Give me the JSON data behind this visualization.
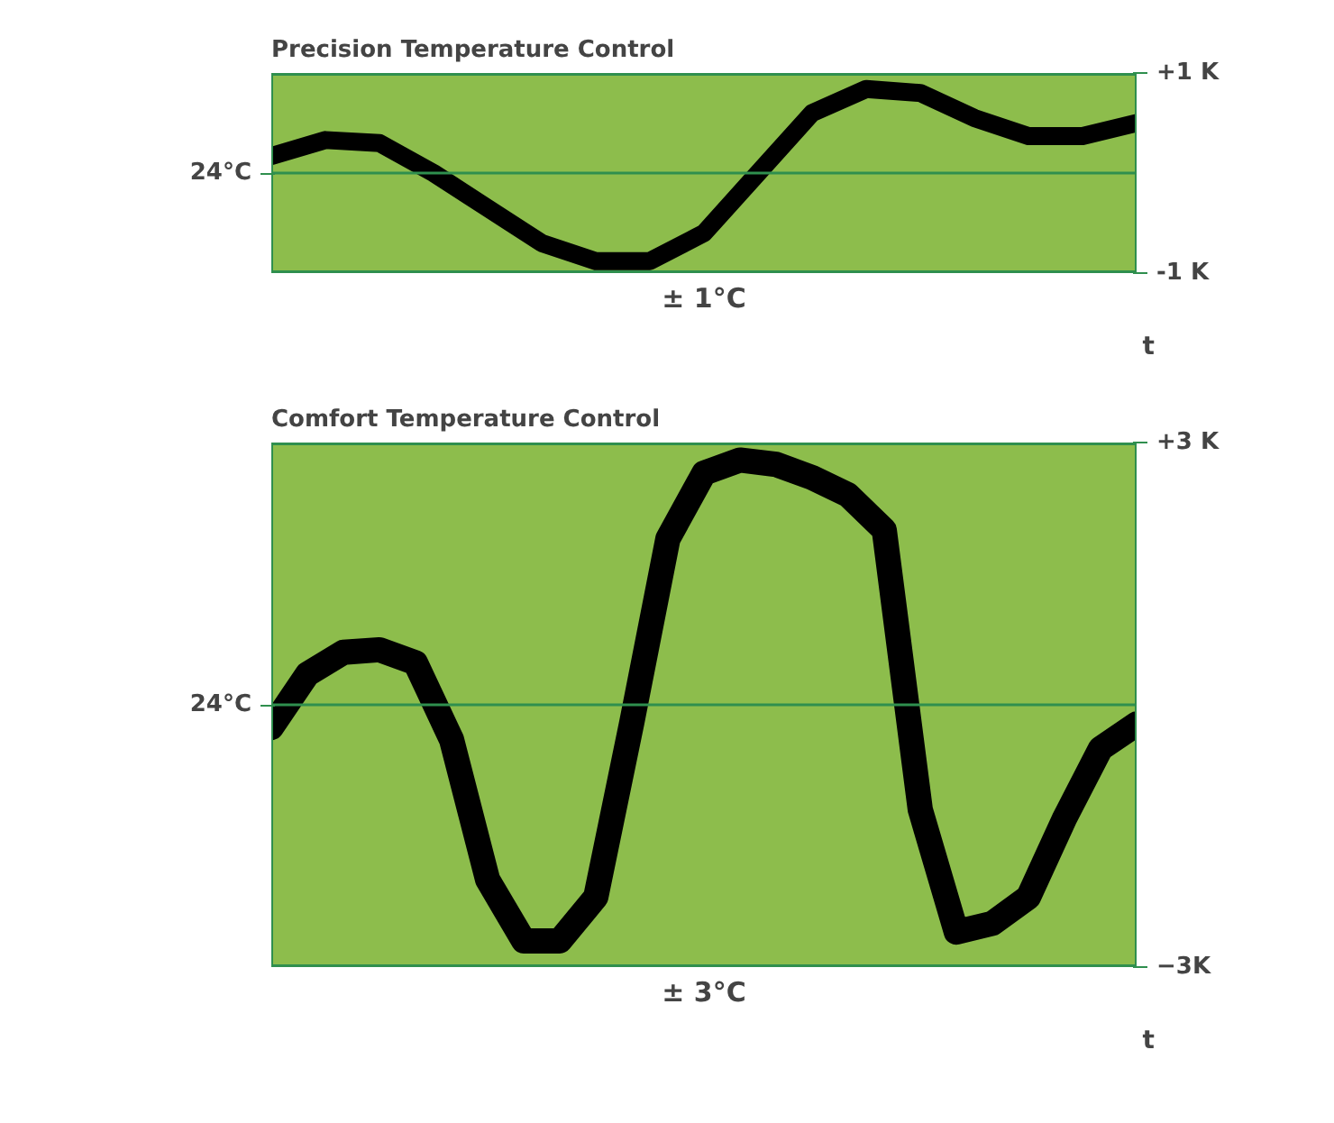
{
  "chart_data": [
    {
      "type": "line",
      "title": "Precision Temperature Control",
      "xlabel": "± 1°C",
      "annotations": [
        "t"
      ],
      "categories": [
        null,
        null,
        null,
        null,
        null,
        null,
        null,
        null,
        null,
        null,
        null,
        null,
        null,
        null,
        null,
        null,
        null
      ],
      "series": [
        {
          "color": "#000000",
          "values": [
            0.17,
            0.33,
            0.3,
            0.0,
            -0.35,
            -0.7,
            -0.88,
            -0.88,
            -0.6,
            0.0,
            0.6,
            0.84,
            0.8,
            0.55,
            0.37,
            0.37,
            0.5
          ]
        }
      ],
      "ylim": [
        -1,
        1
      ],
      "yticks": [
        {
          "value": 1,
          "label": "+1 K"
        },
        {
          "value": -1,
          "label": "-1 K"
        }
      ],
      "ref_lines": [
        {
          "axis": "y",
          "value": 0,
          "label": "24°C",
          "color": "#2f8f4e"
        }
      ],
      "grid": "y",
      "tick_labels": "y"
    },
    {
      "type": "line",
      "title": "Comfort Temperature Control",
      "xlabel": "± 3°C",
      "annotations": [
        "t"
      ],
      "categories": [
        null,
        null,
        null,
        null,
        null,
        null,
        null,
        null,
        null,
        null,
        null,
        null,
        null,
        null,
        null,
        null,
        null,
        null,
        null,
        null,
        null,
        null,
        null,
        null,
        null
      ],
      "series": [
        {
          "color": "#000000",
          "values": [
            -0.26,
            0.35,
            0.6,
            0.63,
            0.48,
            -0.4,
            -2.0,
            -2.7,
            -2.7,
            -2.2,
            -0.2,
            1.9,
            2.65,
            2.8,
            2.75,
            2.6,
            2.4,
            2.0,
            -1.2,
            -2.6,
            -2.5,
            -2.2,
            -1.3,
            -0.5,
            -0.22
          ]
        }
      ],
      "ylim": [
        -3,
        3
      ],
      "yticks": [
        {
          "value": 3,
          "label": "+3 K"
        },
        {
          "value": -3,
          "label": "−3K"
        }
      ],
      "ref_lines": [
        {
          "axis": "y",
          "value": 0,
          "label": "24°C",
          "color": "#2f8f4e"
        }
      ],
      "grid": "y",
      "tick_labels": "y"
    }
  ]
}
